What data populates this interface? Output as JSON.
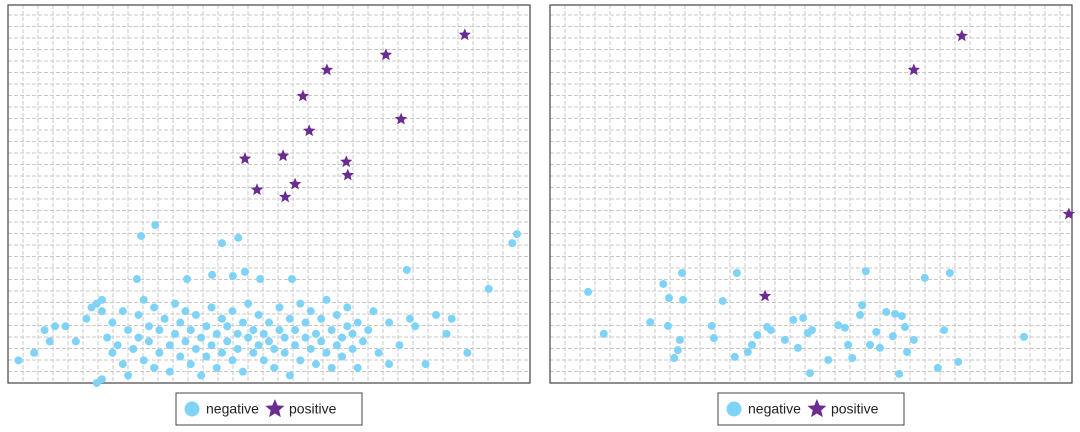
{
  "chart_data": [
    {
      "type": "scatter",
      "xlim": [
        0,
        100
      ],
      "ylim": [
        0,
        100
      ],
      "grid": true,
      "series": [
        {
          "name": "negative",
          "color": "#7fd3f7",
          "marker": "circle",
          "x": [
            28.2,
            25.5,
            44.1,
            41.0,
            97.5,
            96.6,
            76.4,
            92.1,
            24.7,
            39.1,
            34.3,
            43.1,
            45.4,
            48.3,
            54.4,
            2,
            5,
            7,
            9,
            8,
            11,
            13,
            15,
            16,
            17,
            18,
            18,
            19,
            20,
            20,
            21,
            22,
            22,
            23,
            23,
            24,
            25,
            25,
            26,
            26,
            27,
            27,
            28,
            28,
            29,
            29,
            30,
            31,
            31,
            32,
            32,
            33,
            33,
            34,
            34,
            35,
            35,
            36,
            36,
            37,
            37,
            38,
            38,
            39,
            39,
            40,
            40,
            41,
            41,
            42,
            42,
            43,
            43,
            44,
            44,
            45,
            45,
            46,
            46,
            47,
            47,
            48,
            48,
            49,
            49,
            50,
            50,
            51,
            51,
            52,
            52,
            53,
            53,
            54,
            54,
            55,
            55,
            56,
            56,
            57,
            57,
            58,
            58,
            59,
            59,
            60,
            60,
            61,
            61,
            62,
            62,
            63,
            63,
            64,
            64,
            65,
            65,
            66,
            66,
            67,
            67,
            68,
            69,
            70,
            71,
            73,
            73,
            75,
            77,
            78,
            80,
            82,
            84,
            85,
            88,
            17,
            18
          ],
          "y": [
            41.8,
            38.9,
            38.4,
            37.0,
            39.4,
            37.0,
            29.9,
            24.9,
            27.5,
            28.6,
            27.5,
            28.3,
            29.4,
            27.5,
            27.5,
            6,
            8,
            14,
            15,
            11,
            15,
            11,
            17,
            20,
            21,
            19,
            22,
            12,
            8,
            16,
            10,
            19,
            5,
            14,
            2,
            9,
            12,
            18,
            6,
            22,
            11,
            15,
            20,
            4,
            8,
            14,
            17,
            10,
            3,
            13,
            21,
            7,
            16,
            11,
            19,
            5,
            14,
            9,
            18,
            12,
            2,
            15,
            7,
            10,
            20,
            13,
            4,
            17,
            8,
            11,
            15,
            6,
            19,
            13,
            9,
            16,
            3,
            12,
            21,
            8,
            14,
            10,
            18,
            6,
            13,
            11,
            16,
            9,
            4,
            14,
            20,
            8,
            12,
            17,
            2,
            10,
            14,
            6,
            21,
            12,
            16,
            9,
            19,
            5,
            13,
            11,
            17,
            8,
            22,
            14,
            4,
            10,
            18,
            12,
            7,
            15,
            20,
            9,
            13,
            16,
            4,
            11,
            14,
            19,
            8,
            16,
            5,
            10,
            17,
            15,
            5,
            18,
            13,
            17,
            8,
            0,
            1
          ]
        },
        {
          "name": "positive",
          "color": "#6a2c91",
          "marker": "star",
          "x": [
            87.5,
            72.4,
            61.1,
            56.5,
            75.3,
            57.7,
            45.4,
            52.7,
            64.8,
            65.1,
            55.0,
            47.7,
            53.1
          ],
          "y": [
            92.1,
            86.8,
            82.8,
            75.9,
            69.8,
            66.7,
            59.3,
            60.1,
            58.5,
            55.0,
            52.6,
            51.1,
            49.2
          ]
        }
      ]
    },
    {
      "type": "scatter",
      "xlim": [
        0,
        100
      ],
      "ylim": [
        0,
        100
      ],
      "grid": true,
      "series": [
        {
          "name": "negative",
          "color": "#7fd3f7",
          "marker": "circle",
          "x": [
            7.3,
            10.3,
            19.2,
            21.7,
            22.8,
            25.3,
            25.5,
            22.6,
            24.9,
            24.5,
            23.8,
            31.0,
            31.4,
            33.1,
            35.8,
            35.4,
            37.9,
            38.7,
            39.7,
            41.6,
            42.3,
            45.0,
            46.6,
            48.5,
            49.4,
            50.2,
            47.5,
            49.8,
            53.3,
            55.2,
            56.5,
            57.1,
            57.9,
            59.8,
            59.4,
            60.5,
            61.3,
            62.5,
            63.2,
            64.4,
            65.7,
            66.1,
            67.4,
            66.9,
            68.4,
            68.0,
            69.7,
            71.8,
            76.6,
            75.5,
            74.3,
            78.2,
            90.8
          ],
          "y": [
            24.1,
            13.0,
            16.1,
            26.2,
            22.5,
            29.1,
            22.0,
            15.1,
            11.4,
            8.7,
            6.6,
            15.1,
            11.9,
            21.7,
            29.1,
            6.9,
            8.2,
            10.1,
            12.7,
            14.8,
            14.0,
            11.4,
            16.7,
            17.2,
            13.2,
            14.0,
            9.3,
            2.6,
            6.1,
            15.3,
            14.6,
            10.1,
            6.6,
            20.6,
            18.0,
            29.6,
            10.1,
            13.5,
            9.3,
            18.8,
            12.4,
            18.3,
            17.7,
            2.4,
            8.2,
            14.8,
            11.4,
            27.8,
            29.1,
            14.0,
            4.0,
            5.6,
            12.2
          ]
        },
        {
          "name": "positive",
          "color": "#6a2c91",
          "marker": "star",
          "x": [
            78.9,
            69.7,
            99.4,
            41.2
          ],
          "y": [
            91.8,
            82.8,
            44.7,
            23.0
          ]
        }
      ]
    }
  ]
}
